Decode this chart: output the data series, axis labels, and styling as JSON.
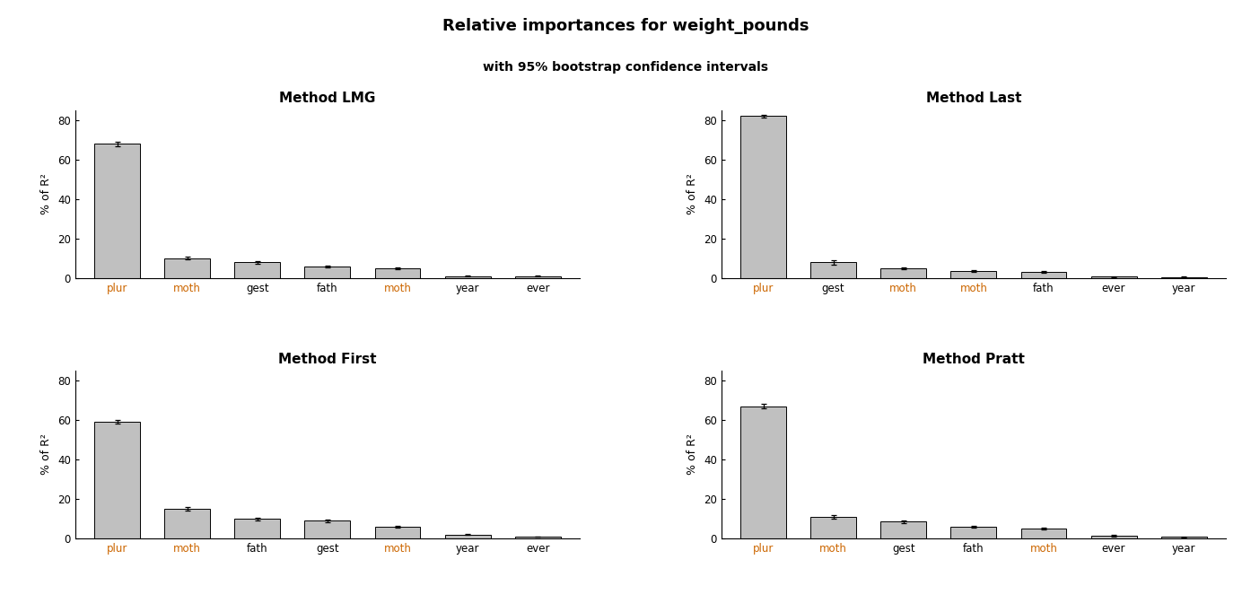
{
  "title": "Relative importances for weight_pounds",
  "subtitle": "with 95% bootstrap confidence intervals",
  "background_color": "#ffffff",
  "bar_color": "#c0c0c0",
  "bar_edge_color": "#000000",
  "subplots": [
    {
      "title": "Method LMG",
      "categories": [
        "plur",
        "moth",
        "gest",
        "fath",
        "moth",
        "year",
        "ever"
      ],
      "values": [
        68.0,
        10.0,
        8.0,
        6.0,
        5.0,
        1.0,
        1.0
      ],
      "errors_low": [
        1.2,
        0.7,
        0.8,
        0.5,
        0.5,
        0.2,
        0.2
      ],
      "errors_high": [
        1.2,
        0.7,
        0.8,
        0.5,
        0.5,
        0.2,
        0.2
      ],
      "ylim": [
        0,
        85
      ],
      "yticks": [
        0,
        20,
        40,
        60,
        80
      ],
      "ylabel": "% of R²",
      "cat_colors": [
        "#cc6600",
        "#cc6600",
        "#000000",
        "#000000",
        "#cc6600",
        "#000000",
        "#000000"
      ]
    },
    {
      "title": "Method Last",
      "categories": [
        "plur",
        "gest",
        "moth",
        "moth",
        "fath",
        "ever",
        "year"
      ],
      "values": [
        82.0,
        8.0,
        5.0,
        3.5,
        3.0,
        0.8,
        0.5
      ],
      "errors_low": [
        0.8,
        1.0,
        0.5,
        0.4,
        0.4,
        0.2,
        0.2
      ],
      "errors_high": [
        0.8,
        1.0,
        0.5,
        0.4,
        0.4,
        0.2,
        0.2
      ],
      "ylim": [
        0,
        85
      ],
      "yticks": [
        0,
        20,
        40,
        60,
        80
      ],
      "ylabel": "% of R²",
      "cat_colors": [
        "#cc6600",
        "#000000",
        "#cc6600",
        "#cc6600",
        "#000000",
        "#000000",
        "#000000"
      ]
    },
    {
      "title": "Method First",
      "categories": [
        "plur",
        "moth",
        "fath",
        "gest",
        "moth",
        "year",
        "ever"
      ],
      "values": [
        59.0,
        15.0,
        10.0,
        9.0,
        6.0,
        2.0,
        1.0
      ],
      "errors_low": [
        1.0,
        0.9,
        0.7,
        0.7,
        0.6,
        0.3,
        0.2
      ],
      "errors_high": [
        1.0,
        0.9,
        0.7,
        0.7,
        0.6,
        0.3,
        0.2
      ],
      "ylim": [
        0,
        85
      ],
      "yticks": [
        0,
        20,
        40,
        60,
        80
      ],
      "ylabel": "% of R²",
      "cat_colors": [
        "#cc6600",
        "#cc6600",
        "#000000",
        "#000000",
        "#cc6600",
        "#000000",
        "#000000"
      ]
    },
    {
      "title": "Method Pratt",
      "categories": [
        "plur",
        "moth",
        "gest",
        "fath",
        "moth",
        "ever",
        "year"
      ],
      "values": [
        67.0,
        11.0,
        8.5,
        6.0,
        5.0,
        1.5,
        0.8
      ],
      "errors_low": [
        1.2,
        0.8,
        0.7,
        0.5,
        0.5,
        0.3,
        0.2
      ],
      "errors_high": [
        1.2,
        0.8,
        0.7,
        0.5,
        0.5,
        0.3,
        0.2
      ],
      "ylim": [
        0,
        85
      ],
      "yticks": [
        0,
        20,
        40,
        60,
        80
      ],
      "ylabel": "% of R²",
      "cat_colors": [
        "#cc6600",
        "#cc6600",
        "#000000",
        "#000000",
        "#cc6600",
        "#000000",
        "#000000"
      ]
    }
  ],
  "title_fontsize": 13,
  "subtitle_fontsize": 10,
  "subplot_title_fontsize": 11,
  "axis_label_fontsize": 9,
  "tick_label_fontsize": 8.5
}
